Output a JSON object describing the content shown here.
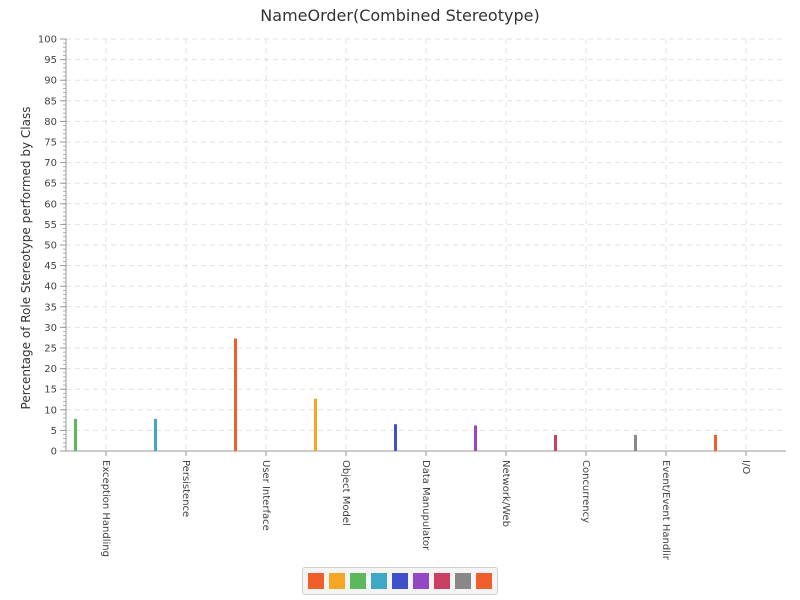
{
  "chart_data": {
    "type": "bar",
    "title": "NameOrder(Combined Stereotype)",
    "xlabel": "",
    "ylabel": "Percentage of Role Stereotype performed by Class",
    "ylim": [
      0,
      100
    ],
    "yticks": [
      0,
      5,
      10,
      15,
      20,
      25,
      30,
      35,
      40,
      45,
      50,
      55,
      60,
      65,
      70,
      75,
      80,
      85,
      90,
      95,
      100
    ],
    "grid": true,
    "legend": "bottom-center",
    "categories": [
      "Exception Handling",
      "Persistence",
      "User Interface",
      "Object Model",
      "Data Manupulator",
      "Network/Web",
      "Concurrency",
      "Event/Event Handling",
      "I/O"
    ],
    "values": [
      7.8,
      7.8,
      27.3,
      12.7,
      6.5,
      6.2,
      3.9,
      3.9,
      3.9
    ],
    "colors": [
      "#5cb85c",
      "#3fa9c5",
      "#ef5f2c",
      "#f5a623",
      "#3f51c8",
      "#9546c4",
      "#cc3f64",
      "#888888",
      "#ef5f2c"
    ],
    "legend_colors": [
      "#ef5f2c",
      "#f5a623",
      "#5cb85c",
      "#3fa9c5",
      "#3f51c8",
      "#9546c4",
      "#cc3f64",
      "#888888",
      "#ef5f2c"
    ]
  }
}
